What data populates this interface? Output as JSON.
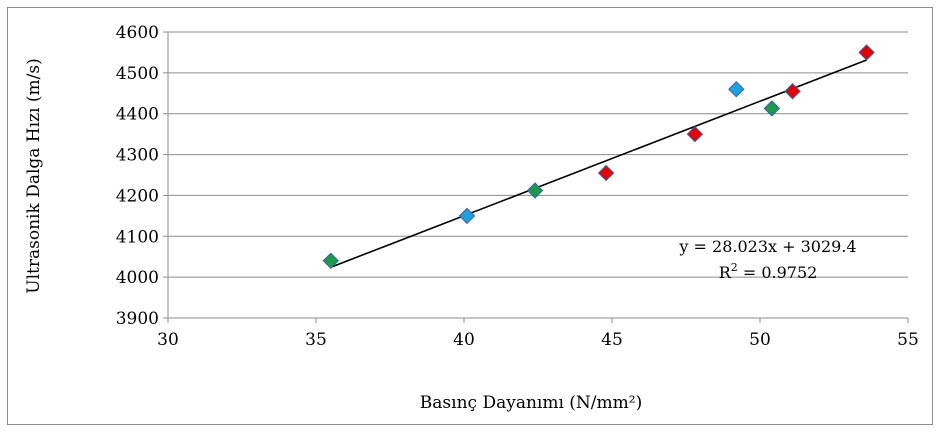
{
  "chart_data": {
    "type": "scatter",
    "xlabel": "Basınç Dayanımı (N/mm²)",
    "ylabel": "Ultrasonik Dalga Hızı (m/s)",
    "xlim": [
      30,
      55
    ],
    "ylim": [
      3900,
      4600
    ],
    "xticks": [
      "30",
      "35",
      "40",
      "45",
      "50",
      "55"
    ],
    "yticks": [
      "3900",
      "4000",
      "4100",
      "4200",
      "4300",
      "4400",
      "4500",
      "4600"
    ],
    "grid": "horizontal",
    "points": [
      {
        "x": 35.5,
        "y": 4040,
        "color": "#1a9a4a"
      },
      {
        "x": 40.1,
        "y": 4150,
        "color": "#1aa3e0"
      },
      {
        "x": 42.4,
        "y": 4212,
        "color": "#1a9a4a"
      },
      {
        "x": 44.8,
        "y": 4255,
        "color": "#e60000"
      },
      {
        "x": 47.8,
        "y": 4350,
        "color": "#e60000"
      },
      {
        "x": 49.2,
        "y": 4460,
        "color": "#1aa3e0"
      },
      {
        "x": 50.4,
        "y": 4413,
        "color": "#1a9a4a"
      },
      {
        "x": 51.1,
        "y": 4455,
        "color": "#e60000"
      },
      {
        "x": 53.6,
        "y": 4550,
        "color": "#e60000"
      }
    ],
    "trendline": {
      "slope": 28.023,
      "intercept": 3029.4,
      "x_range": [
        35.5,
        53.6
      ],
      "color": "#000000"
    },
    "equation_text": "y = 28.023x + 3029.4",
    "r2_label": "R",
    "r2_superscript": "2",
    "r2_value_text": " = 0.9752",
    "marker_outline_color": "#3a5fa8",
    "gridline_color": "#8c8c8c"
  }
}
